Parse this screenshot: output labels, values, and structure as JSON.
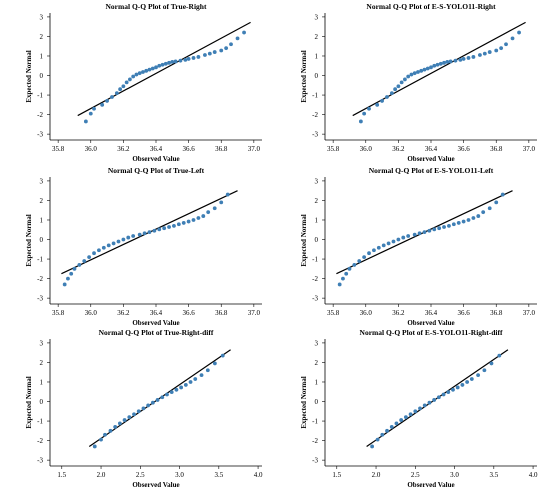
{
  "colors": {
    "point": "#3f7fb5",
    "line": "#000000",
    "axis": "#000000"
  },
  "chart_data": [
    {
      "type": "scatter",
      "title": "Normal Q-Q Plot of True-Right",
      "xlabel": "Observed Value",
      "ylabel": "Expected Normal",
      "xlim": [
        35.75,
        37.05
      ],
      "ylim": [
        -3.3,
        3.2
      ],
      "xticks": [
        "35.8",
        "36.0",
        "36.2",
        "36.4",
        "36.6",
        "36.8",
        "37.0"
      ],
      "xtick_values": [
        35.8,
        36.0,
        36.2,
        36.4,
        36.6,
        36.8,
        37.0
      ],
      "yticks": [
        "-3",
        "-2",
        "-1",
        "0",
        "1",
        "2",
        "3"
      ],
      "ytick_values": [
        -3,
        -2,
        -1,
        0,
        1,
        2,
        3
      ],
      "reference_line": {
        "x": [
          35.92,
          36.98
        ],
        "y": [
          -2.05,
          2.72
        ]
      },
      "points": {
        "x": [
          35.97,
          36.0,
          36.02,
          36.07,
          36.1,
          36.13,
          36.16,
          36.18,
          36.2,
          36.22,
          36.24,
          36.26,
          36.28,
          36.3,
          36.32,
          36.34,
          36.36,
          36.38,
          36.4,
          36.42,
          36.44,
          36.46,
          36.48,
          36.5,
          36.52,
          36.55,
          36.58,
          36.6,
          36.63,
          36.66,
          36.7,
          36.73,
          36.76,
          36.8,
          36.83,
          36.86,
          36.9,
          36.94
        ],
        "y": [
          -2.35,
          -1.95,
          -1.7,
          -1.5,
          -1.3,
          -1.1,
          -0.9,
          -0.7,
          -0.55,
          -0.35,
          -0.2,
          -0.05,
          0.05,
          0.12,
          0.18,
          0.24,
          0.3,
          0.36,
          0.42,
          0.5,
          0.55,
          0.6,
          0.65,
          0.7,
          0.72,
          0.76,
          0.8,
          0.85,
          0.9,
          0.95,
          1.05,
          1.12,
          1.2,
          1.28,
          1.4,
          1.6,
          1.9,
          2.2
        ]
      }
    },
    {
      "type": "scatter",
      "title": "Normal Q-Q Plot of E-S-YOLO11-Right",
      "xlabel": "Observed Value",
      "ylabel": "Expected Normal",
      "xlim": [
        35.75,
        37.05
      ],
      "ylim": [
        -3.3,
        3.2
      ],
      "xticks": [
        "35.8",
        "36.0",
        "36.2",
        "36.4",
        "36.6",
        "36.8",
        "37.0"
      ],
      "xtick_values": [
        35.8,
        36.0,
        36.2,
        36.4,
        36.6,
        36.8,
        37.0
      ],
      "yticks": [
        "-3",
        "-2",
        "-1",
        "0",
        "1",
        "2",
        "3"
      ],
      "ytick_values": [
        -3,
        -2,
        -1,
        0,
        1,
        2,
        3
      ],
      "reference_line": {
        "x": [
          35.92,
          36.98
        ],
        "y": [
          -2.05,
          2.72
        ]
      },
      "points": {
        "x": [
          35.97,
          35.99,
          36.02,
          36.07,
          36.1,
          36.13,
          36.16,
          36.18,
          36.2,
          36.22,
          36.24,
          36.26,
          36.28,
          36.3,
          36.32,
          36.34,
          36.36,
          36.38,
          36.4,
          36.42,
          36.44,
          36.46,
          36.48,
          36.5,
          36.52,
          36.55,
          36.58,
          36.6,
          36.63,
          36.66,
          36.7,
          36.73,
          36.76,
          36.8,
          36.83,
          36.86,
          36.9,
          36.94
        ],
        "y": [
          -2.35,
          -1.95,
          -1.7,
          -1.5,
          -1.3,
          -1.1,
          -0.9,
          -0.7,
          -0.55,
          -0.35,
          -0.2,
          -0.05,
          0.05,
          0.12,
          0.18,
          0.24,
          0.3,
          0.36,
          0.42,
          0.5,
          0.55,
          0.6,
          0.65,
          0.7,
          0.72,
          0.76,
          0.8,
          0.85,
          0.9,
          0.95,
          1.05,
          1.12,
          1.2,
          1.28,
          1.4,
          1.6,
          1.9,
          2.2
        ]
      }
    },
    {
      "type": "scatter",
      "title": "Normal Q-Q Plot of True-Left",
      "xlabel": "Observed Value",
      "ylabel": "Expected Normal",
      "xlim": [
        35.75,
        37.05
      ],
      "ylim": [
        -3.3,
        3.2
      ],
      "xticks": [
        "35.8",
        "36.0",
        "36.2",
        "36.4",
        "36.6",
        "36.8",
        "37.0"
      ],
      "xtick_values": [
        35.8,
        36.0,
        36.2,
        36.4,
        36.6,
        36.8,
        37.0
      ],
      "yticks": [
        "-3",
        "-2",
        "-1",
        "0",
        "1",
        "2",
        "3"
      ],
      "ytick_values": [
        -3,
        -2,
        -1,
        0,
        1,
        2,
        3
      ],
      "reference_line": {
        "x": [
          35.82,
          36.9
        ],
        "y": [
          -1.75,
          2.5
        ]
      },
      "points": {
        "x": [
          35.84,
          35.86,
          35.88,
          35.9,
          35.93,
          35.96,
          35.99,
          36.02,
          36.05,
          36.08,
          36.11,
          36.14,
          36.17,
          36.2,
          36.23,
          36.26,
          36.3,
          36.33,
          36.36,
          36.39,
          36.42,
          36.45,
          36.48,
          36.51,
          36.54,
          36.57,
          36.6,
          36.63,
          36.66,
          36.69,
          36.72,
          36.76,
          36.8,
          36.84
        ],
        "y": [
          -2.3,
          -2.0,
          -1.75,
          -1.5,
          -1.3,
          -1.1,
          -0.9,
          -0.7,
          -0.55,
          -0.42,
          -0.3,
          -0.2,
          -0.1,
          0.0,
          0.1,
          0.18,
          0.25,
          0.32,
          0.38,
          0.45,
          0.52,
          0.58,
          0.64,
          0.7,
          0.78,
          0.85,
          0.92,
          1.0,
          1.1,
          1.2,
          1.4,
          1.6,
          1.9,
          2.3
        ]
      }
    },
    {
      "type": "scatter",
      "title": "Normal Q-Q Plot of E-S-YOLO11-Left",
      "xlabel": "Observed Value",
      "ylabel": "Expected Normal",
      "xlim": [
        35.75,
        37.05
      ],
      "ylim": [
        -3.3,
        3.2
      ],
      "xticks": [
        "35.8",
        "36.0",
        "36.2",
        "36.4",
        "36.6",
        "36.8",
        "37.0"
      ],
      "xtick_values": [
        35.8,
        36.0,
        36.2,
        36.4,
        36.6,
        36.8,
        37.0
      ],
      "yticks": [
        "-3",
        "-2",
        "-1",
        "0",
        "1",
        "2",
        "3"
      ],
      "ytick_values": [
        -3,
        -2,
        -1,
        0,
        1,
        2,
        3
      ],
      "reference_line": {
        "x": [
          35.82,
          36.9
        ],
        "y": [
          -1.75,
          2.5
        ]
      },
      "points": {
        "x": [
          35.84,
          35.86,
          35.88,
          35.9,
          35.93,
          35.96,
          35.99,
          36.02,
          36.05,
          36.08,
          36.11,
          36.14,
          36.17,
          36.2,
          36.23,
          36.26,
          36.3,
          36.33,
          36.36,
          36.39,
          36.42,
          36.45,
          36.48,
          36.51,
          36.54,
          36.57,
          36.6,
          36.63,
          36.66,
          36.69,
          36.72,
          36.76,
          36.8,
          36.84
        ],
        "y": [
          -2.3,
          -2.0,
          -1.75,
          -1.5,
          -1.3,
          -1.1,
          -0.9,
          -0.7,
          -0.55,
          -0.42,
          -0.3,
          -0.2,
          -0.1,
          0.0,
          0.1,
          0.18,
          0.25,
          0.32,
          0.38,
          0.45,
          0.52,
          0.58,
          0.64,
          0.7,
          0.78,
          0.85,
          0.92,
          1.0,
          1.1,
          1.2,
          1.4,
          1.6,
          1.9,
          2.3
        ]
      }
    },
    {
      "type": "scatter",
      "title": "Normal Q-Q Plot of True-Right-diff",
      "xlabel": "Observed Value",
      "ylabel": "Expected Normal",
      "xlim": [
        1.35,
        4.05
      ],
      "ylim": [
        -3.3,
        3.2
      ],
      "xticks": [
        "1.5",
        "2.0",
        "2.5",
        "3.0",
        "3.5",
        "4.0"
      ],
      "xtick_values": [
        1.5,
        2.0,
        2.5,
        3.0,
        3.5,
        4.0
      ],
      "yticks": [
        "-3",
        "-2",
        "-1",
        "0",
        "1",
        "2",
        "3"
      ],
      "ytick_values": [
        -3,
        -2,
        -1,
        0,
        1,
        2,
        3
      ],
      "reference_line": {
        "x": [
          1.85,
          3.65
        ],
        "y": [
          -2.3,
          2.65
        ]
      },
      "points": {
        "x": [
          1.92,
          2.0,
          2.05,
          2.12,
          2.18,
          2.24,
          2.3,
          2.36,
          2.42,
          2.48,
          2.54,
          2.6,
          2.66,
          2.72,
          2.78,
          2.84,
          2.9,
          2.96,
          3.02,
          3.08,
          3.14,
          3.2,
          3.28,
          3.36,
          3.45,
          3.55
        ],
        "y": [
          -2.3,
          -1.95,
          -1.7,
          -1.5,
          -1.3,
          -1.12,
          -0.95,
          -0.8,
          -0.65,
          -0.5,
          -0.35,
          -0.2,
          -0.06,
          0.08,
          0.22,
          0.36,
          0.48,
          0.6,
          0.72,
          0.85,
          1.0,
          1.15,
          1.35,
          1.6,
          1.95,
          2.35
        ]
      }
    },
    {
      "type": "scatter",
      "title": "Normal Q-Q Plot of E-S-YOLO11-Right-diff",
      "xlabel": "Observed Value",
      "ylabel": "Expected Normal",
      "xlim": [
        1.35,
        4.05
      ],
      "ylim": [
        -3.3,
        3.2
      ],
      "xticks": [
        "1.5",
        "2.0",
        "2.5",
        "3.0",
        "3.5",
        "4.0"
      ],
      "xtick_values": [
        1.5,
        2.0,
        2.5,
        3.0,
        3.5,
        4.0
      ],
      "yticks": [
        "-3",
        "-2",
        "-1",
        "0",
        "1",
        "2",
        "3"
      ],
      "ytick_values": [
        -3,
        -2,
        -1,
        0,
        1,
        2,
        3
      ],
      "reference_line": {
        "x": [
          1.88,
          3.68
        ],
        "y": [
          -2.3,
          2.65
        ]
      },
      "points": {
        "x": [
          1.95,
          2.02,
          2.08,
          2.14,
          2.2,
          2.26,
          2.32,
          2.38,
          2.44,
          2.5,
          2.56,
          2.62,
          2.68,
          2.74,
          2.8,
          2.86,
          2.92,
          2.98,
          3.04,
          3.1,
          3.16,
          3.22,
          3.3,
          3.38,
          3.47,
          3.57
        ],
        "y": [
          -2.3,
          -1.95,
          -1.7,
          -1.5,
          -1.3,
          -1.12,
          -0.95,
          -0.8,
          -0.65,
          -0.5,
          -0.35,
          -0.2,
          -0.06,
          0.08,
          0.22,
          0.36,
          0.48,
          0.6,
          0.72,
          0.85,
          1.0,
          1.15,
          1.35,
          1.6,
          1.95,
          2.35
        ]
      }
    }
  ]
}
